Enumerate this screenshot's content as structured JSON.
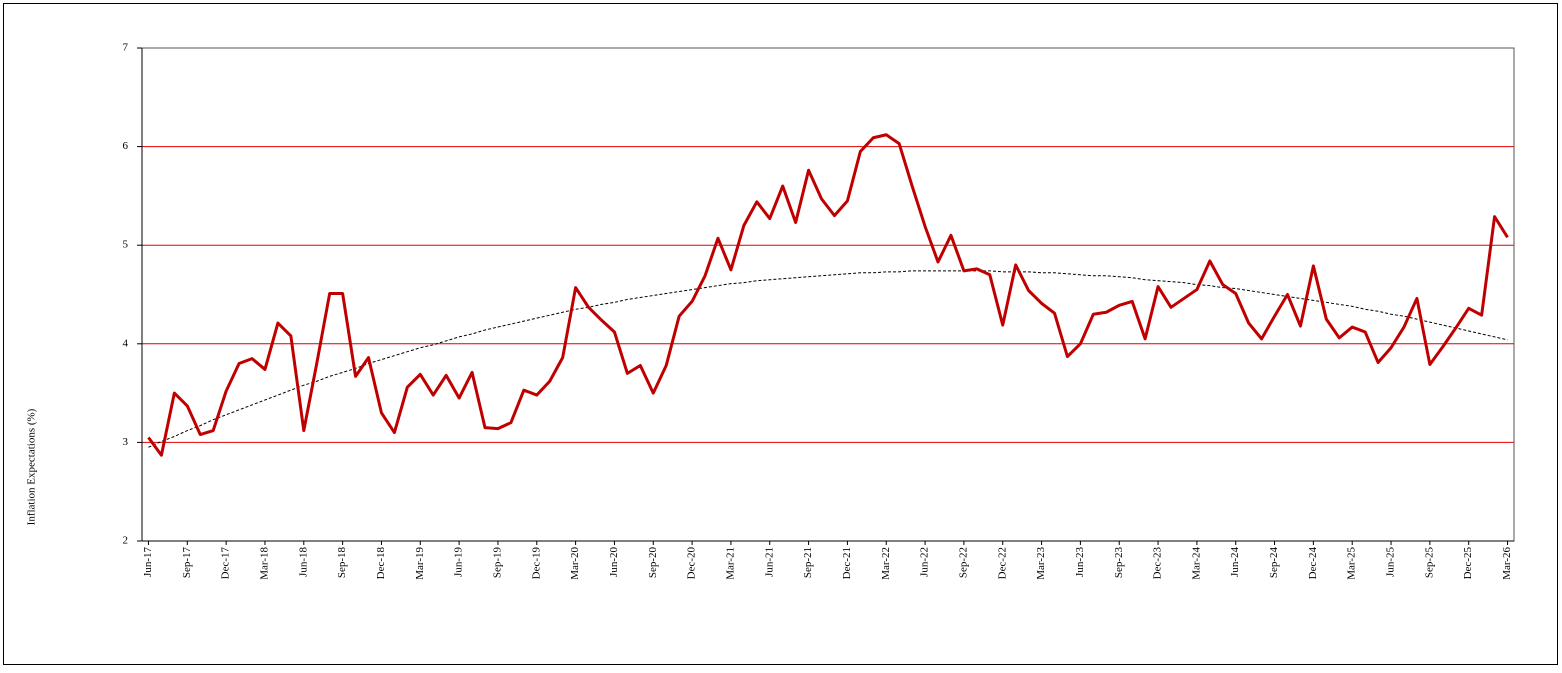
{
  "chart_data": {
    "type": "line",
    "y_label": "Inflation Expectations (%)",
    "categories": [
      "Jun-17",
      null,
      null,
      "Sep-17",
      null,
      null,
      "Dec-17",
      null,
      null,
      "Mar-18",
      null,
      null,
      "Jun-18",
      null,
      null,
      "Sep-18",
      null,
      null,
      "Dec-18",
      null,
      null,
      "Mar-19",
      null,
      null,
      "Jun-19",
      null,
      null,
      "Sep-19",
      null,
      null,
      "Dec-19",
      null,
      null,
      "Mar-20",
      null,
      null,
      "Jun-20",
      null,
      null,
      "Sep-20",
      null,
      null,
      "Dec-20",
      null,
      null,
      "Mar-21",
      null,
      null,
      "Jun-21",
      null,
      null,
      "Sep-21",
      null,
      null,
      "Dec-21",
      null,
      null,
      "Mar-22",
      null,
      null,
      "Jun-22",
      null,
      null,
      "Sep-22",
      null,
      null,
      "Dec-22",
      null,
      null,
      "Mar-23",
      null,
      null,
      "Jun-23",
      null,
      null,
      "Sep-23",
      null,
      null,
      "Dec-23",
      null,
      null,
      "Mar-24",
      null,
      null,
      "Jun-24",
      null,
      null,
      "Sep-24",
      null,
      null,
      "Dec-24",
      null,
      null,
      "Mar-25",
      null,
      null,
      "Jun-25",
      null,
      null,
      "Sep-25",
      null,
      null,
      "Dec-25",
      null,
      null,
      "Mar-26"
    ],
    "series": [
      {
        "color": "#c00000",
        "dashed": false,
        "values": [
          3.05,
          2.87,
          3.5,
          3.37,
          3.08,
          3.12,
          3.52,
          3.8,
          3.85,
          3.74,
          4.21,
          4.08,
          3.12,
          3.8,
          4.51,
          4.51,
          3.67,
          3.86,
          3.3,
          3.1,
          3.56,
          3.69,
          3.48,
          3.68,
          3.45,
          3.71,
          3.15,
          3.14,
          3.2,
          3.53,
          3.48,
          3.62,
          3.86,
          4.57,
          4.37,
          4.24,
          4.12,
          3.7,
          3.78,
          3.5,
          3.78,
          4.28,
          4.43,
          4.69,
          5.07,
          4.75,
          5.2,
          5.44,
          5.27,
          5.6,
          5.23,
          5.76,
          5.47,
          5.3,
          5.45,
          5.95,
          6.09,
          6.12,
          6.03,
          5.6,
          5.19,
          4.83,
          5.1,
          4.74,
          4.76,
          4.7,
          4.19,
          4.8,
          4.54,
          4.41,
          4.31,
          3.87,
          4.0,
          4.3,
          4.32,
          4.39,
          4.43,
          4.05,
          4.58,
          4.37,
          4.46,
          4.55,
          4.84,
          4.6,
          4.51,
          4.21,
          4.05,
          4.28,
          4.5,
          4.18,
          4.79,
          4.25,
          4.06,
          4.17,
          4.12,
          3.81,
          3.96,
          4.17,
          4.46,
          3.79,
          3.97,
          4.16,
          4.36,
          4.29,
          5.29,
          5.08
        ]
      },
      {
        "color": "#000000",
        "dashed": true,
        "values": [
          2.95,
          3.01,
          3.06,
          3.12,
          3.17,
          3.23,
          3.28,
          3.33,
          3.38,
          3.43,
          3.48,
          3.53,
          3.58,
          3.62,
          3.67,
          3.71,
          3.75,
          3.8,
          3.84,
          3.88,
          3.92,
          3.96,
          3.99,
          4.03,
          4.07,
          4.1,
          4.14,
          4.17,
          4.2,
          4.23,
          4.26,
          4.29,
          4.32,
          4.35,
          4.37,
          4.4,
          4.42,
          4.45,
          4.47,
          4.49,
          4.51,
          4.53,
          4.55,
          4.57,
          4.59,
          4.61,
          4.62,
          4.64,
          4.65,
          4.66,
          4.67,
          4.68,
          4.69,
          4.7,
          4.71,
          4.72,
          4.72,
          4.73,
          4.73,
          4.74,
          4.74,
          4.74,
          4.74,
          4.74,
          4.74,
          4.74,
          4.73,
          4.73,
          4.73,
          4.72,
          4.72,
          4.71,
          4.7,
          4.69,
          4.69,
          4.68,
          4.67,
          4.65,
          4.64,
          4.63,
          4.62,
          4.6,
          4.59,
          4.57,
          4.56,
          4.54,
          4.52,
          4.5,
          4.48,
          4.46,
          4.44,
          4.42,
          4.4,
          4.38,
          4.35,
          4.33,
          4.3,
          4.28,
          4.25,
          4.22,
          4.19,
          4.16,
          4.13,
          4.1,
          4.07,
          4.04
        ]
      }
    ],
    "ylim": [
      2,
      7
    ],
    "yticks": [
      2,
      3,
      4,
      5,
      6,
      7
    ],
    "grid": true,
    "grid_color": "#e00000"
  }
}
